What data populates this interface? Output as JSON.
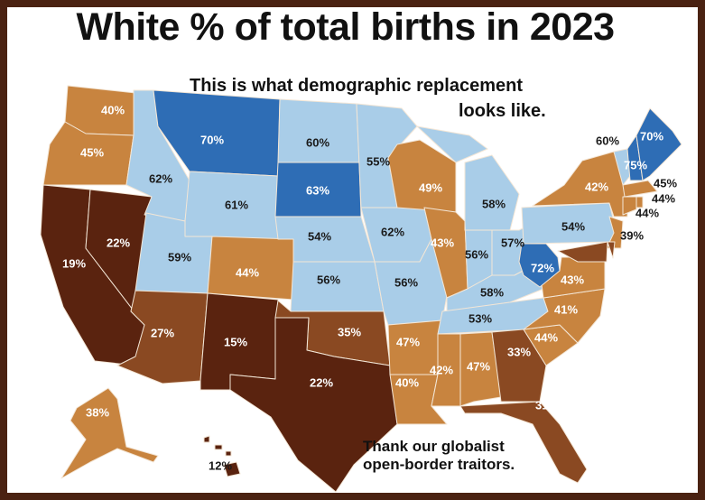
{
  "title": "White % of total births in 2023",
  "annotation_top": [
    "This is what demographic replacement",
    "looks like."
  ],
  "annotation_bottom": [
    "Thank our globalist",
    "open-border traitors."
  ],
  "colors": {
    "dark_blue": "#2e6db5",
    "light_blue": "#a9cde8",
    "orange": "#c8843f",
    "brown": "#8a4922",
    "dark_brown": "#5a230f",
    "frame": "#4a2212"
  },
  "states": [
    {
      "code": "WA",
      "pct": "40%",
      "tier": "orange"
    },
    {
      "code": "OR",
      "pct": "45%",
      "tier": "orange"
    },
    {
      "code": "CA",
      "pct": "19%",
      "tier": "dark_brown"
    },
    {
      "code": "NV",
      "pct": "22%",
      "tier": "dark_brown"
    },
    {
      "code": "ID",
      "pct": "62%",
      "tier": "light_blue"
    },
    {
      "code": "MT",
      "pct": "70%",
      "tier": "dark_blue"
    },
    {
      "code": "WY",
      "pct": "61%",
      "tier": "light_blue"
    },
    {
      "code": "UT",
      "pct": "59%",
      "tier": "light_blue"
    },
    {
      "code": "AZ",
      "pct": "27%",
      "tier": "brown"
    },
    {
      "code": "CO",
      "pct": "44%",
      "tier": "orange"
    },
    {
      "code": "NM",
      "pct": "15%",
      "tier": "dark_brown"
    },
    {
      "code": "ND",
      "pct": "60%",
      "tier": "light_blue"
    },
    {
      "code": "SD",
      "pct": "63%",
      "tier": "dark_blue"
    },
    {
      "code": "NE",
      "pct": "54%",
      "tier": "light_blue"
    },
    {
      "code": "KS",
      "pct": "56%",
      "tier": "light_blue"
    },
    {
      "code": "OK",
      "pct": "35%",
      "tier": "brown"
    },
    {
      "code": "TX",
      "pct": "22%",
      "tier": "dark_brown"
    },
    {
      "code": "MN",
      "pct": "55%",
      "tier": "light_blue"
    },
    {
      "code": "IA",
      "pct": "62%",
      "tier": "light_blue"
    },
    {
      "code": "MO",
      "pct": "56%",
      "tier": "light_blue"
    },
    {
      "code": "AR",
      "pct": "47%",
      "tier": "orange"
    },
    {
      "code": "LA",
      "pct": "40%",
      "tier": "orange"
    },
    {
      "code": "WI",
      "pct": "49%",
      "tier": "orange"
    },
    {
      "code": "IL",
      "pct": "43%",
      "tier": "orange"
    },
    {
      "code": "MI",
      "pct": "58%",
      "tier": "light_blue"
    },
    {
      "code": "IN",
      "pct": "56%",
      "tier": "light_blue"
    },
    {
      "code": "OH",
      "pct": "57%",
      "tier": "light_blue"
    },
    {
      "code": "KY",
      "pct": "58%",
      "tier": "light_blue"
    },
    {
      "code": "TN",
      "pct": "53%",
      "tier": "light_blue"
    },
    {
      "code": "MS",
      "pct": "42%",
      "tier": "orange"
    },
    {
      "code": "AL",
      "pct": "47%",
      "tier": "orange"
    },
    {
      "code": "GA",
      "pct": "33%",
      "tier": "brown"
    },
    {
      "code": "FL",
      "pct": "31%",
      "tier": "brown"
    },
    {
      "code": "SC",
      "pct": "44%",
      "tier": "orange"
    },
    {
      "code": "NC",
      "pct": "41%",
      "tier": "orange"
    },
    {
      "code": "VA",
      "pct": "43%",
      "tier": "orange"
    },
    {
      "code": "WV",
      "pct": "72%",
      "tier": "dark_blue"
    },
    {
      "code": "PA",
      "pct": "54%",
      "tier": "light_blue"
    },
    {
      "code": "NY",
      "pct": "42%",
      "tier": "orange"
    },
    {
      "code": "VT",
      "pct": "60%",
      "tier": "light_blue"
    },
    {
      "code": "NH",
      "pct": "75%",
      "tier": "dark_blue"
    },
    {
      "code": "ME",
      "pct": "70%",
      "tier": "dark_blue"
    },
    {
      "code": "MA",
      "pct": "45%",
      "tier": "orange"
    },
    {
      "code": "RI",
      "pct": "44%",
      "tier": "orange"
    },
    {
      "code": "CT",
      "pct": "44%",
      "tier": "orange"
    },
    {
      "code": "NJ",
      "pct": "39%",
      "tier": "orange"
    },
    {
      "code": "MD",
      "pct": "",
      "tier": "brown"
    },
    {
      "code": "DE",
      "pct": "",
      "tier": "brown"
    },
    {
      "code": "AK",
      "pct": "38%",
      "tier": "orange"
    },
    {
      "code": "HI",
      "pct": "12%",
      "tier": "dark_brown"
    }
  ]
}
